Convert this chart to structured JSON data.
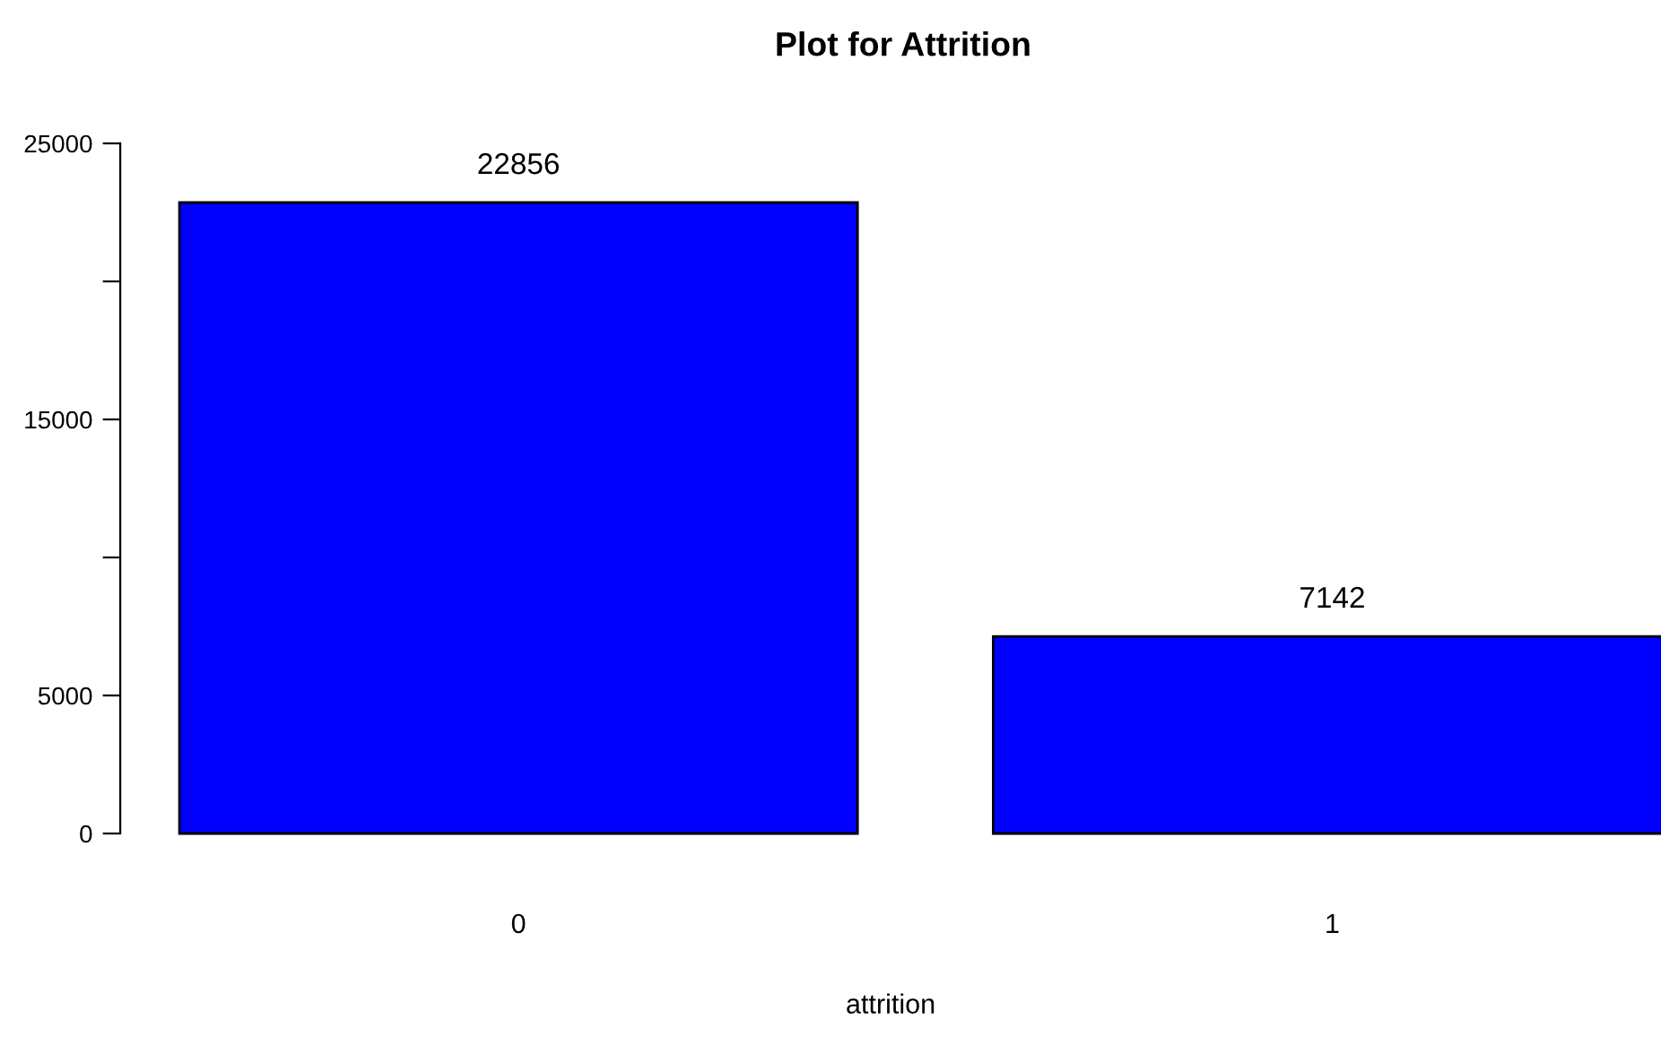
{
  "chart_data": {
    "type": "bar",
    "title": "Plot for Attrition",
    "xlabel": "attrition",
    "categories": [
      "0",
      "1"
    ],
    "values": [
      22856,
      7142
    ],
    "color": "#0000ff",
    "ylim": [
      0,
      25000
    ],
    "yticks": [
      0,
      5000,
      {
        "value": 10000,
        "label": null
      },
      15000,
      {
        "value": 20000,
        "label": null
      },
      25000
    ],
    "data_labels": true,
    "grid": false
  }
}
